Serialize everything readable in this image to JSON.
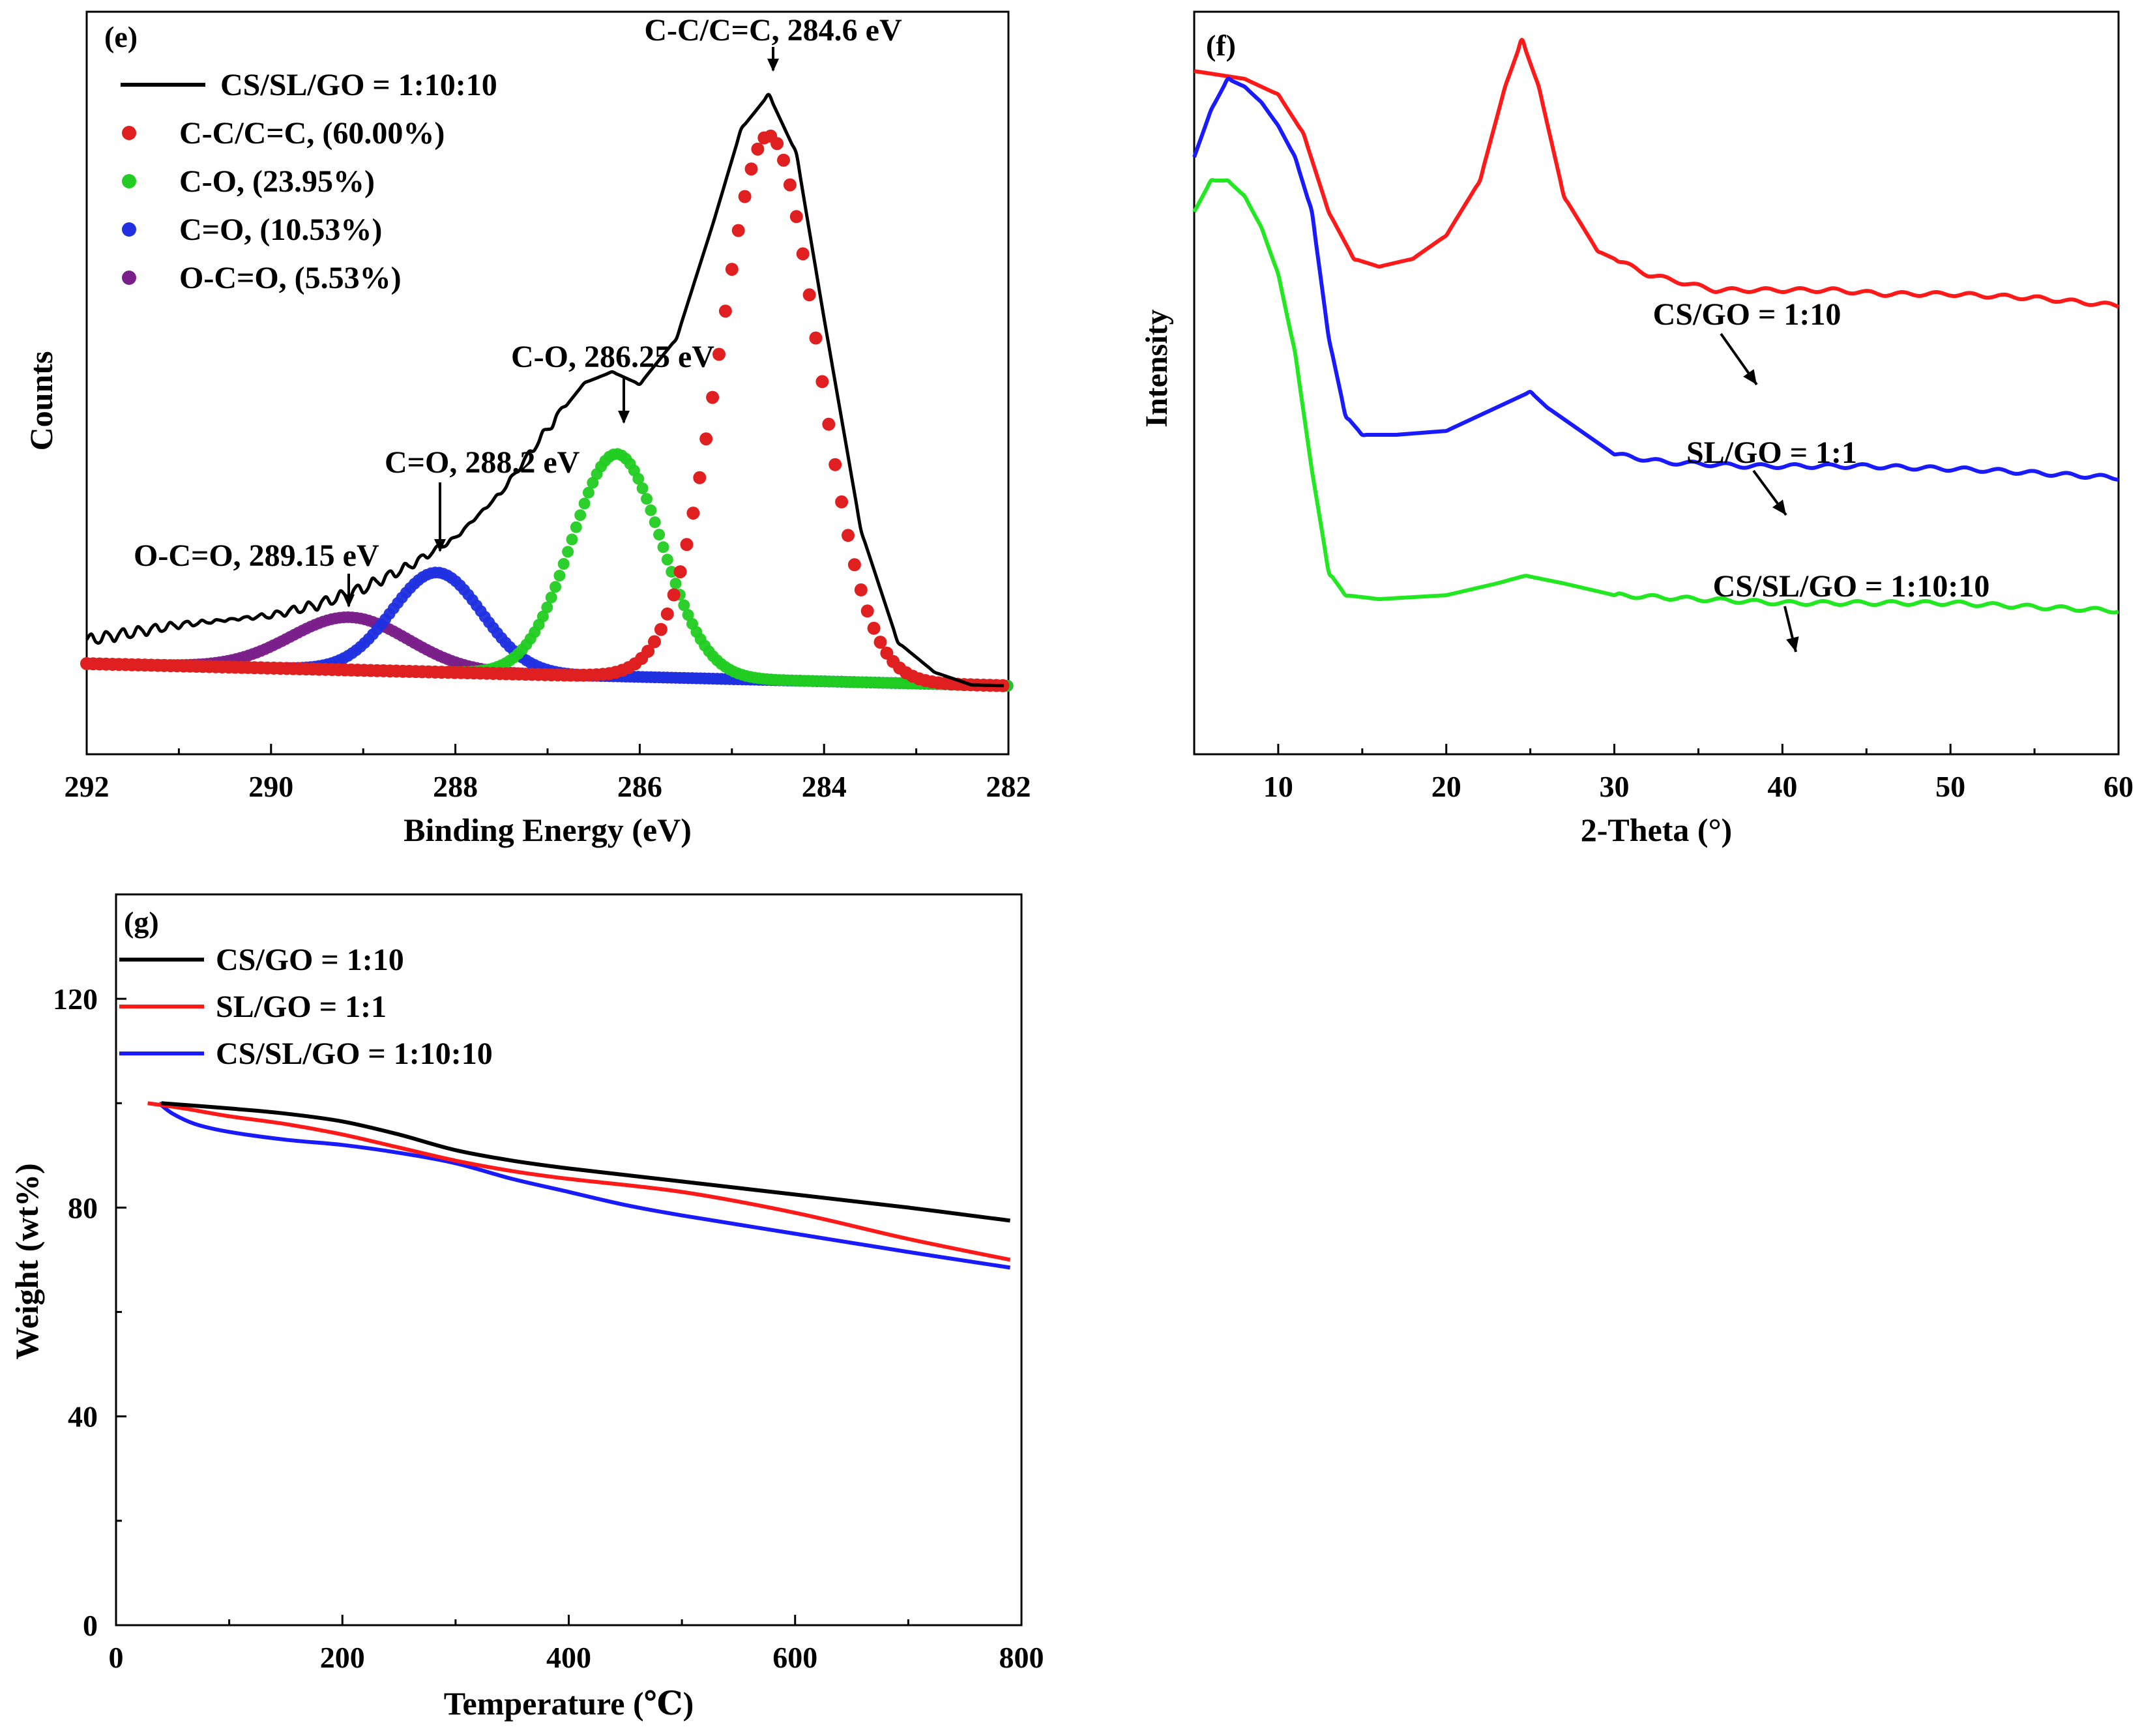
{
  "chart_data": [
    {
      "panel": "(e)",
      "type": "scatter",
      "xlabel": "Binding Energy (eV)",
      "ylabel": "Counts",
      "xlim": [
        292,
        282
      ],
      "x_reversed": true,
      "xticks": [
        "292",
        "290",
        "288",
        "286",
        "284",
        "282"
      ],
      "y_tick_labels": false,
      "legend_position": "top-left",
      "colors": {
        "envelope": "#000000",
        "cc": "#e02020",
        "co": "#22cc22",
        "c_eq_o": "#2030e0",
        "occo": "#7a1f8a"
      },
      "series": [
        {
          "name": "CS/SL/GO = 1:10:10",
          "kind": "line",
          "color": "#000000",
          "x": [
            292,
            291,
            290,
            289.5,
            289,
            288.5,
            288,
            287.5,
            287,
            286.6,
            286.3,
            286,
            285.6,
            285.2,
            284.9,
            284.6,
            284.3,
            284,
            283.6,
            283.2,
            282.8,
            282.4,
            282
          ],
          "y": [
            0.04,
            0.07,
            0.09,
            0.11,
            0.14,
            0.18,
            0.23,
            0.31,
            0.42,
            0.5,
            0.52,
            0.5,
            0.58,
            0.78,
            0.94,
            1.0,
            0.9,
            0.62,
            0.26,
            0.07,
            0.02,
            0.0,
            0.0
          ]
        },
        {
          "name": "C-C/C=C, (60.00%)",
          "kind": "points",
          "color": "#e02020",
          "center": 284.6,
          "amplitude": 0.93,
          "fwhm": 1.25
        },
        {
          "name": "C-O, (23.95%)",
          "kind": "points",
          "color": "#22cc22",
          "center": 286.25,
          "amplitude": 0.38,
          "fwhm": 1.15
        },
        {
          "name": "C=O, (10.53%)",
          "kind": "points",
          "color": "#2030e0",
          "center": 288.2,
          "amplitude": 0.17,
          "fwhm": 1.15
        },
        {
          "name": "O-C=O, (5.53%)",
          "kind": "points",
          "color": "#7a1f8a",
          "center": 289.15,
          "amplitude": 0.09,
          "fwhm": 1.5
        }
      ],
      "annotations": [
        {
          "text": "C-C/C=C, 284.6 eV",
          "x": 284.6
        },
        {
          "text": "C-O, 286.25 eV",
          "x": 286.25
        },
        {
          "text": "C=O, 288.2 eV",
          "x": 288.2
        },
        {
          "text": "O-C=O, 289.15 eV",
          "x": 289.15
        }
      ]
    },
    {
      "panel": "(f)",
      "type": "line",
      "xlabel": "2-Theta (°)",
      "ylabel": "Intensity",
      "xlim": [
        5,
        60
      ],
      "xticks": [
        "10",
        "20",
        "30",
        "40",
        "50",
        "60"
      ],
      "y_tick_labels": false,
      "series": [
        {
          "name": "CS/GO = 1:10",
          "color": "#ff1a1a",
          "x": [
            5,
            8,
            10,
            11.5,
            13,
            14.5,
            16,
            18,
            20,
            22,
            23.5,
            24.5,
            25.5,
            27,
            29,
            32,
            36,
            40,
            43,
            46,
            50,
            55,
            60
          ],
          "y": [
            0.74,
            0.73,
            0.71,
            0.66,
            0.56,
            0.5,
            0.49,
            0.5,
            0.53,
            0.6,
            0.72,
            0.78,
            0.72,
            0.58,
            0.51,
            0.48,
            0.46,
            0.46,
            0.46,
            0.455,
            0.455,
            0.45,
            0.44
          ]
        },
        {
          "name": "SL/GO = 1:1",
          "color": "#1a1aff",
          "x": [
            5,
            6,
            7,
            8,
            9,
            10,
            11,
            12,
            13,
            14,
            15,
            17,
            20,
            22,
            24,
            25,
            26,
            28,
            30,
            33,
            38,
            45,
            52,
            60
          ],
          "y": [
            0.63,
            0.69,
            0.73,
            0.72,
            0.7,
            0.67,
            0.63,
            0.56,
            0.4,
            0.3,
            0.275,
            0.275,
            0.28,
            0.3,
            0.32,
            0.33,
            0.31,
            0.28,
            0.25,
            0.24,
            0.235,
            0.235,
            0.23,
            0.22
          ]
        },
        {
          "name": "CS/SL/GO = 1:10:10",
          "color": "#22e822",
          "x": [
            5,
            6,
            7,
            8,
            9,
            10,
            11,
            12,
            13,
            14,
            16,
            20,
            23,
            24.7,
            27,
            30,
            35,
            40,
            45,
            50,
            55,
            60
          ],
          "y": [
            0.56,
            0.6,
            0.6,
            0.58,
            0.54,
            0.48,
            0.38,
            0.23,
            0.1,
            0.07,
            0.065,
            0.07,
            0.085,
            0.095,
            0.085,
            0.07,
            0.065,
            0.06,
            0.06,
            0.06,
            0.055,
            0.05
          ]
        }
      ]
    },
    {
      "panel": "(g)",
      "type": "line",
      "xlabel": "Temperature (℃)",
      "ylabel": "Weight (wt%)",
      "xlim": [
        0,
        800
      ],
      "ylim": [
        0,
        140
      ],
      "xticks": [
        "0",
        "200",
        "400",
        "600",
        "800"
      ],
      "yticks": [
        "0",
        "40",
        "80",
        "120"
      ],
      "legend_position": "top-left",
      "series": [
        {
          "name": "CS/GO = 1:10",
          "color": "#000000",
          "x": [
            40,
            100,
            150,
            200,
            250,
            300,
            350,
            400,
            500,
            600,
            700,
            790
          ],
          "y": [
            100,
            99,
            98,
            96.5,
            94,
            91,
            89,
            87.5,
            85,
            82.5,
            80,
            77.5
          ]
        },
        {
          "name": "SL/GO = 1:1",
          "color": "#ff1a1a",
          "x": [
            28,
            60,
            100,
            150,
            200,
            250,
            300,
            350,
            400,
            500,
            600,
            700,
            790
          ],
          "y": [
            100,
            99,
            97.5,
            96,
            94,
            91.5,
            89,
            87,
            85.5,
            83,
            79,
            74,
            70
          ]
        },
        {
          "name": "CS/SL/GO = 1:10:10",
          "color": "#1a1aff",
          "x": [
            38,
            50,
            70,
            100,
            150,
            200,
            250,
            300,
            350,
            400,
            450,
            500,
            600,
            700,
            790
          ],
          "y": [
            100,
            98,
            96,
            94.5,
            93,
            92,
            90.5,
            88.5,
            85.5,
            83,
            80.5,
            78.5,
            75,
            71.5,
            68.5
          ]
        }
      ]
    }
  ]
}
